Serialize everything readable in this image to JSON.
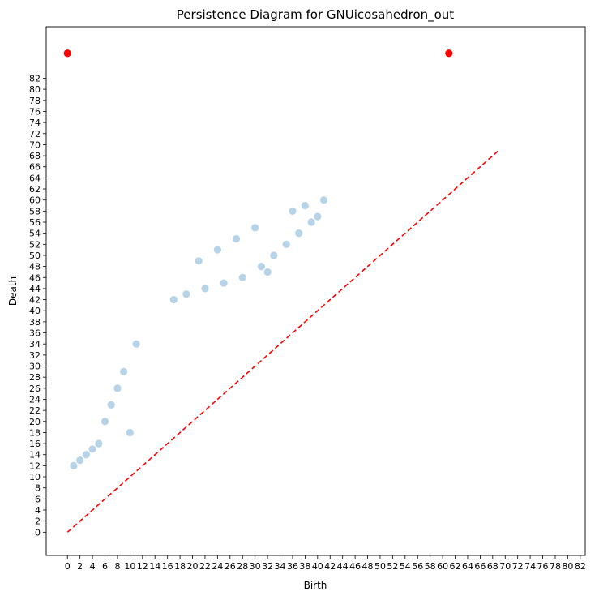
{
  "chart_data": {
    "type": "scatter",
    "title": "Persistence Diagram for GNUicosahedron_out",
    "xlabel": "Birth",
    "ylabel": "Death",
    "xlim": [
      -3.4,
      82.8
    ],
    "ylim": [
      -4.2,
      91.3
    ],
    "xticks": [
      0,
      2,
      4,
      6,
      8,
      10,
      12,
      14,
      16,
      18,
      20,
      22,
      24,
      26,
      28,
      30,
      32,
      34,
      36,
      38,
      40,
      42,
      44,
      46,
      48,
      50,
      52,
      54,
      56,
      58,
      60,
      62,
      64,
      66,
      68,
      70,
      72,
      74,
      76,
      78,
      80,
      82
    ],
    "yticks": [
      0,
      2,
      4,
      6,
      8,
      10,
      12,
      14,
      16,
      18,
      20,
      22,
      24,
      26,
      28,
      30,
      32,
      34,
      36,
      38,
      40,
      42,
      44,
      46,
      48,
      50,
      52,
      54,
      56,
      58,
      60,
      62,
      64,
      66,
      68,
      70,
      72,
      74,
      76,
      78,
      80,
      82
    ],
    "finite_points": {
      "color": "#7bafd4",
      "alpha": 0.55,
      "points": [
        [
          1,
          12
        ],
        [
          2,
          13
        ],
        [
          3,
          14
        ],
        [
          4,
          15
        ],
        [
          5,
          16
        ],
        [
          6,
          20
        ],
        [
          7,
          23
        ],
        [
          8,
          26
        ],
        [
          9,
          29
        ],
        [
          10,
          18
        ],
        [
          11,
          34
        ],
        [
          17,
          42
        ],
        [
          19,
          43
        ],
        [
          21,
          49
        ],
        [
          22,
          44
        ],
        [
          24,
          51
        ],
        [
          25,
          45
        ],
        [
          27,
          53
        ],
        [
          28,
          46
        ],
        [
          30,
          55
        ],
        [
          31,
          48
        ],
        [
          32,
          47
        ],
        [
          33,
          50
        ],
        [
          35,
          52
        ],
        [
          36,
          58
        ],
        [
          37,
          54
        ],
        [
          38,
          59
        ],
        [
          39,
          56
        ],
        [
          40,
          57
        ],
        [
          41,
          60
        ]
      ]
    },
    "infinite_points": {
      "color": "#ff0000",
      "y_value": 86.5,
      "points": [
        [
          0,
          86.5
        ],
        [
          61,
          86.5
        ]
      ]
    },
    "diagonal": {
      "color": "#ff0000",
      "style": "dashed",
      "from": [
        0,
        0
      ],
      "to": [
        69,
        69
      ]
    }
  }
}
